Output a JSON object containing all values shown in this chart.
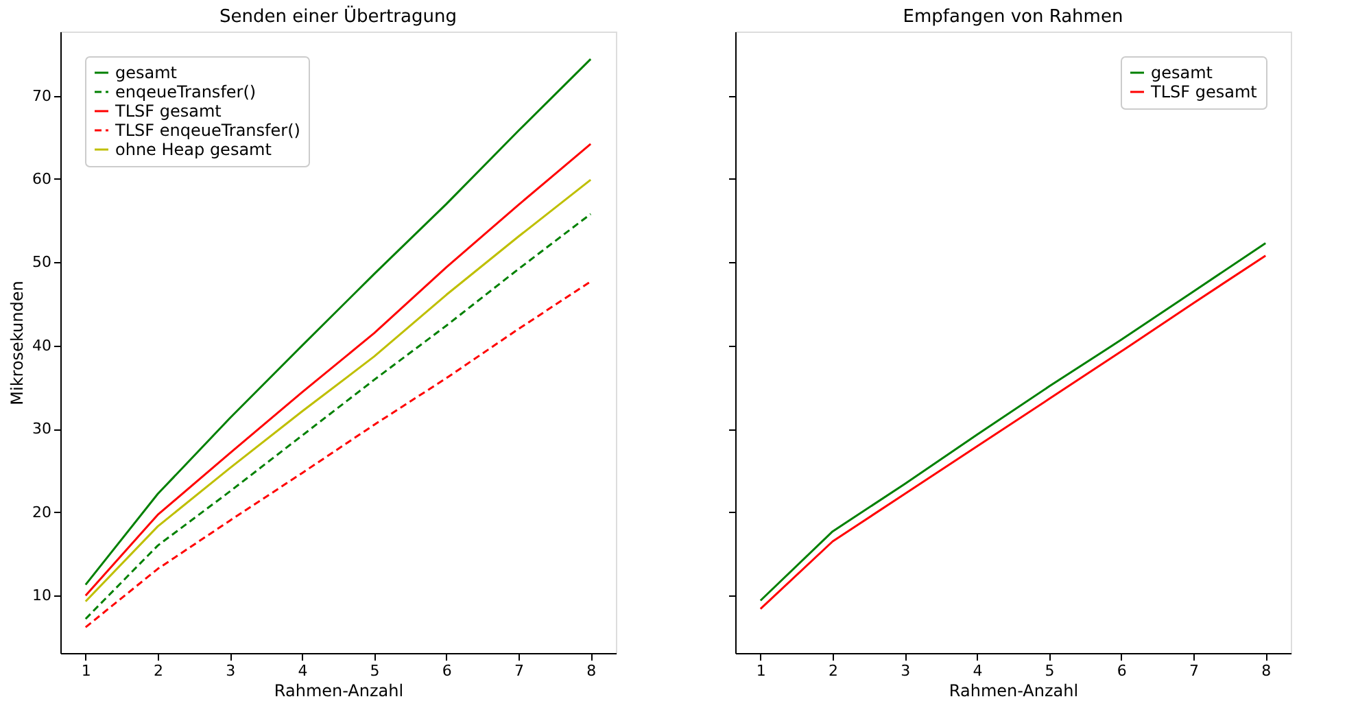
{
  "chart_data": [
    {
      "type": "line",
      "title": "Senden einer Übertragung",
      "xlabel": "Rahmen-Anzahl",
      "ylabel": "Mikrosekunden",
      "x": [
        1,
        2,
        3,
        4,
        5,
        6,
        7,
        8
      ],
      "xlim": [
        0.65,
        8.35
      ],
      "xticks": [
        1,
        2,
        3,
        4,
        5,
        6,
        7,
        8
      ],
      "ylim": [
        3.1,
        77.7
      ],
      "yticks": [
        10,
        20,
        30,
        40,
        50,
        60,
        70
      ],
      "legend": "top left",
      "grid": false,
      "marker": "none",
      "series": [
        {
          "name": "gesamt",
          "color": "#008000",
          "line_style": "solid",
          "values": [
            11.3,
            22.2,
            31.3,
            40,
            48.6,
            57,
            65.8,
            74.4
          ]
        },
        {
          "name": "enqeueTransfer()",
          "color": "#008000",
          "line_style": "dashed",
          "values": [
            7.2,
            16,
            22.5,
            29.2,
            35.9,
            42.4,
            49.2,
            55.8
          ]
        },
        {
          "name": "TLSF gesamt",
          "color": "#ff0000",
          "line_style": "solid",
          "values": [
            10,
            19.7,
            27.1,
            34.4,
            41.5,
            49.4,
            56.9,
            64.2
          ]
        },
        {
          "name": "TLSF enqeueTransfer()",
          "color": "#ff0000",
          "line_style": "dashed",
          "values": [
            6.2,
            13.2,
            19,
            24.7,
            30.5,
            36.1,
            42,
            47.7
          ]
        },
        {
          "name": "ohne Heap gesamt",
          "color": "#bfbf00",
          "line_style": "solid",
          "values": [
            9.3,
            18.3,
            25.3,
            32.1,
            38.7,
            46.1,
            53.1,
            59.9
          ]
        }
      ]
    },
    {
      "type": "line",
      "title": "Empfangen von Rahmen",
      "xlabel": "Rahmen-Anzahl",
      "x": [
        1,
        2,
        3,
        4,
        5,
        6,
        7,
        8
      ],
      "xlim": [
        0.65,
        8.35
      ],
      "xticks": [
        1,
        2,
        3,
        4,
        5,
        6,
        7,
        8
      ],
      "ylim": [
        3.1,
        77.7
      ],
      "yticks": [
        10,
        20,
        30,
        40,
        50,
        60,
        70
      ],
      "tick_labels": "x",
      "legend": "top right",
      "grid": false,
      "marker": "none",
      "series": [
        {
          "name": "gesamt",
          "color": "#008000",
          "line_style": "solid",
          "values": [
            9.4,
            17.7,
            23.4,
            29.3,
            35.1,
            40.7,
            46.5,
            52.3
          ]
        },
        {
          "name": "TLSF gesamt",
          "color": "#ff0000",
          "line_style": "solid",
          "values": [
            8.4,
            16.5,
            22.2,
            27.9,
            33.6,
            39.3,
            45.1,
            50.8
          ]
        }
      ]
    }
  ]
}
